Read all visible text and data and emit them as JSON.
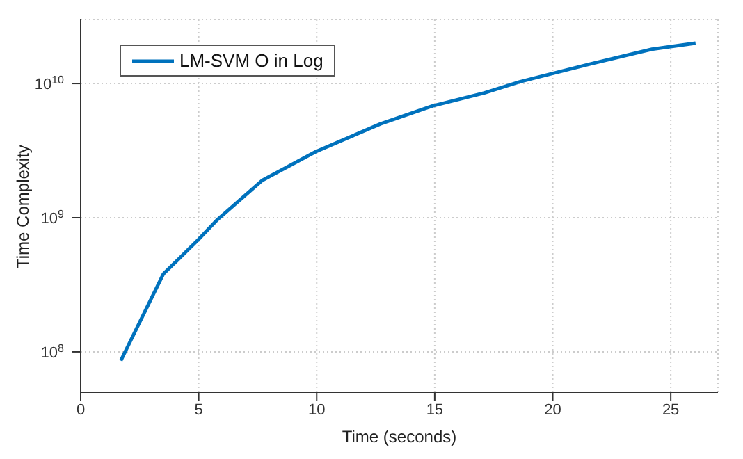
{
  "chart_data": {
    "type": "line",
    "xlabel": "Time (seconds)",
    "ylabel": "Time Complexity",
    "log": "y",
    "grid": true,
    "legend": "top left",
    "marker": "none",
    "line_style": "solid",
    "xlim": [
      0,
      27
    ],
    "xticks": [
      0,
      5,
      10,
      15,
      20,
      25
    ],
    "ylim": [
      50000000,
      30000000000
    ],
    "yticks": [
      {
        "value": 100000000,
        "label": "10$^{8}$"
      },
      {
        "value": 1000000000,
        "label": "10$^{9}$"
      },
      {
        "value": 10000000000,
        "label": "10$^{10}$"
      }
    ],
    "series": [
      {
        "name": "LM-SVM O in Log",
        "color": "#0072bd",
        "x": [
          1.7,
          3.5,
          5.0,
          5.8,
          7.7,
          9.95,
          12.7,
          14.9,
          17.1,
          18.6,
          21.6,
          24.2,
          26.05
        ],
        "values": [
          86000000,
          380000000,
          690000000,
          970000000,
          1900000000,
          3100000000,
          5000000000,
          6800000000,
          8500000000,
          10300000000,
          14000000000,
          18000000000,
          20000000000
        ]
      }
    ]
  }
}
